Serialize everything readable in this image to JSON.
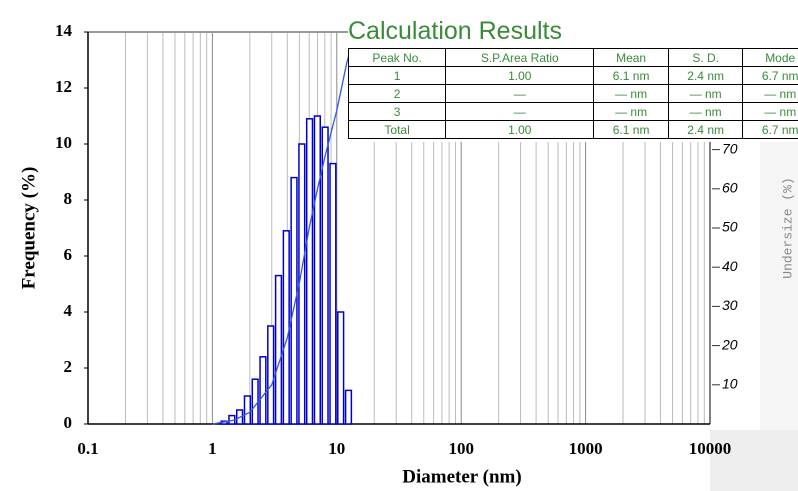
{
  "chart_data": {
    "type": "histogram",
    "xlabel": "Diameter (nm)",
    "ylabel": "Frequency (%)",
    "y2label": "Undersize (%)",
    "xscale": "log",
    "xlim": [
      0.1,
      10000
    ],
    "xticks": [
      0.1,
      1,
      10,
      100,
      1000,
      10000
    ],
    "xticks_minor": [
      0.2,
      0.3,
      0.4,
      0.5,
      0.6,
      0.7,
      0.8,
      0.9,
      2,
      3,
      4,
      5,
      6,
      7,
      8,
      9,
      20,
      30,
      40,
      50,
      60,
      70,
      80,
      90,
      200,
      300,
      400,
      500,
      600,
      700,
      800,
      900,
      2000,
      3000,
      4000,
      5000,
      6000,
      7000,
      8000,
      9000
    ],
    "ylim": [
      0,
      14
    ],
    "yticks": [
      0,
      2,
      4,
      6,
      8,
      10,
      12,
      14
    ],
    "y2lim": [
      0,
      100
    ],
    "y2ticks": [
      10,
      20,
      30,
      40,
      50,
      60,
      70
    ],
    "bins": [
      1.155,
      1.334,
      1.54,
      1.778,
      2.054,
      2.371,
      2.738,
      3.162,
      3.652,
      4.217,
      4.87,
      5.623,
      6.494,
      7.499,
      8.66,
      10,
      11.55,
      13.34
    ],
    "values": [
      0.1,
      0.3,
      0.5,
      1.0,
      1.6,
      2.4,
      3.5,
      5.3,
      6.9,
      8.8,
      10.0,
      10.9,
      11.0,
      10.6,
      9.3,
      4.0,
      1.2
    ],
    "color": "#0000cc",
    "cumulative": {
      "axis": "y2",
      "color": "#3355ee",
      "x": [
        1,
        1.5,
        2,
        3,
        4,
        5,
        6,
        7,
        8,
        10,
        12,
        13.5
      ],
      "values": [
        0,
        1,
        3,
        10,
        22,
        36,
        50,
        60,
        68,
        80,
        92,
        98
      ]
    }
  },
  "table": {
    "title": "Calculation Results",
    "columns": [
      "Peak No.",
      "S.P.Area Ratio",
      "Mean",
      "S. D.",
      "Mode"
    ],
    "rows": [
      [
        "1",
        "1.00",
        "6.1 nm",
        "2.4 nm",
        "6.7 nm"
      ],
      [
        "2",
        "—",
        "— nm",
        "— nm",
        "— nm"
      ],
      [
        "3",
        "—",
        "— nm",
        "— nm",
        "— nm"
      ],
      [
        "Total",
        "1.00",
        "6.1 nm",
        "2.4 nm",
        "6.7 nm"
      ]
    ]
  }
}
